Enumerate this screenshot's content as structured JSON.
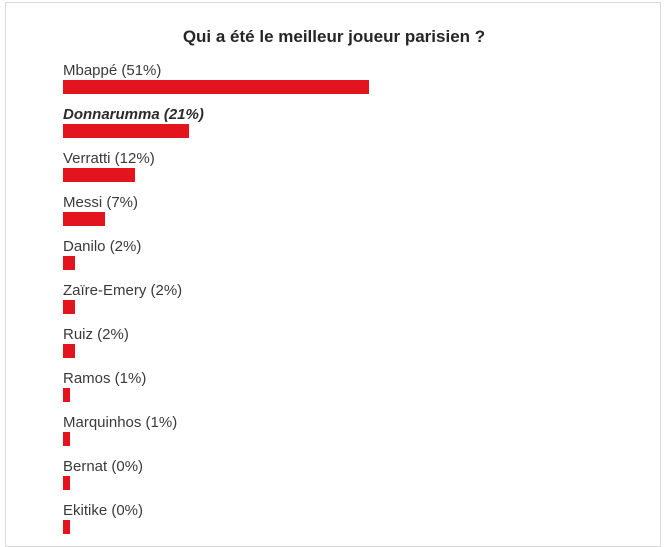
{
  "poll": {
    "title": "Qui a été le meilleur joueur parisien ?",
    "bar_color": "#e3141e",
    "selected_index": 1
  },
  "chart_data": {
    "type": "bar",
    "orientation": "horizontal",
    "title": "Qui a été le meilleur joueur parisien ?",
    "xlabel": "",
    "ylabel": "",
    "unit": "%",
    "categories": [
      "Mbappé",
      "Donnarumma",
      "Verratti",
      "Messi",
      "Danilo",
      "Zaïre-Emery",
      "Ruiz",
      "Ramos",
      "Marquinhos",
      "Bernat",
      "Ekitike"
    ],
    "values": [
      51,
      21,
      12,
      7,
      2,
      2,
      2,
      1,
      1,
      0,
      0
    ],
    "labels": [
      "Mbappé (51%)",
      "Donnarumma (21%)",
      "Verratti (12%)",
      "Messi (7%)",
      "Danilo (2%)",
      "Zaïre-Emery (2%)",
      "Ruiz (2%)",
      "Ramos (1%)",
      "Marquinhos (1%)",
      "Bernat (0%)",
      "Ekitike (0%)"
    ],
    "grid": false,
    "legend": "none"
  }
}
